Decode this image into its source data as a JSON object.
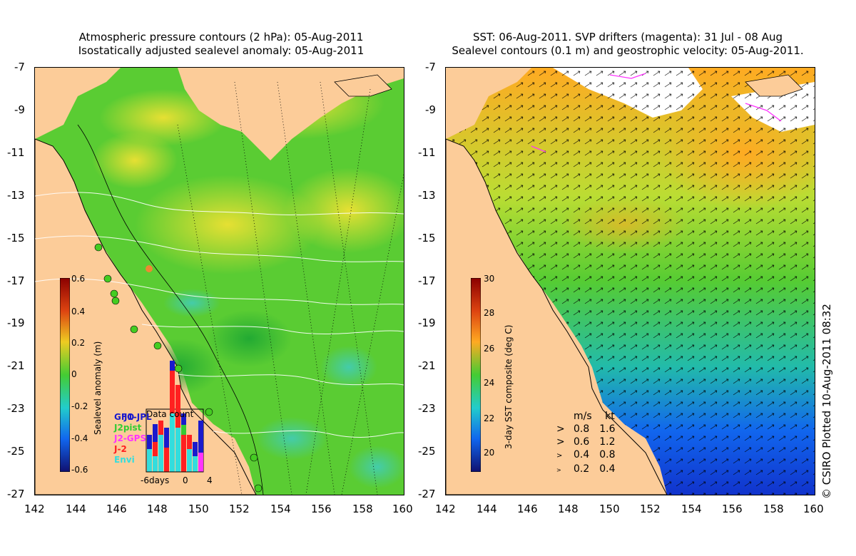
{
  "left_panel": {
    "title_line1": "Atmospheric pressure contours (2 hPa): 05-Aug-2011",
    "title_line2": "Isostatically adjusted sealevel anomaly: 05-Aug-2011",
    "colorbar_label": "Sealevel anomaly (m)",
    "colorbar_ticks": [
      "0.6",
      "0.4",
      "0.2",
      "0",
      "-0.2",
      "-0.4",
      "-0.6"
    ],
    "inset": {
      "title": "Data count",
      "legend": [
        {
          "label": "GFO",
          "color": "#1a1acc"
        },
        {
          "label": "J1-JPL",
          "color": "#1a1acc"
        },
        {
          "label": "J2pist",
          "color": "#33cc33"
        },
        {
          "label": "J2-GPS",
          "color": "#ff33ff"
        },
        {
          "label": "J-2",
          "color": "#ff2020"
        },
        {
          "label": "Envi",
          "color": "#33dddd"
        }
      ],
      "xlabel_left": "-6days",
      "xlabel_mid": "0",
      "xlabel_right": "4"
    }
  },
  "right_panel": {
    "title_line1": "SST: 06-Aug-2011. SVP drifters (magenta): 31 Jul - 08 Aug",
    "title_line2": "Sealevel contours (0.1 m) and geostrophic velocity: 05-Aug-2011.",
    "colorbar_label": "3-day SST composite (deg C)",
    "colorbar_ticks": [
      "30",
      "28",
      "26",
      "24",
      "22",
      "20"
    ],
    "speed_legend": {
      "header_ms": "m/s",
      "header_kt": "kt",
      "rows": [
        {
          "ms": "0.8",
          "kt": "1.6"
        },
        {
          "ms": "0.6",
          "kt": "1.2"
        },
        {
          "ms": "0.4",
          "kt": "0.8"
        },
        {
          "ms": "0.2",
          "kt": "0.4"
        }
      ]
    }
  },
  "axes": {
    "y_ticks": [
      "-7",
      "-9",
      "-11",
      "-13",
      "-15",
      "-17",
      "-19",
      "-21",
      "-23",
      "-25",
      "-27"
    ],
    "x_ticks": [
      "142",
      "144",
      "146",
      "148",
      "150",
      "152",
      "154",
      "156",
      "158",
      "160"
    ]
  },
  "credit": "© CSIRO Plotted 10-Aug-2011 08:32",
  "colors": {
    "land": "#fccc99",
    "ocean_green": "#55cc33",
    "ocean_yellow": "#ccdd33",
    "sst_orange": "#ffaa22",
    "sst_blue": "#1144dd"
  }
}
